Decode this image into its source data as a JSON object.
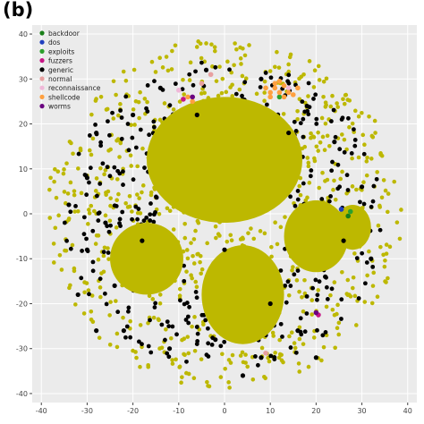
{
  "panel_label": "(b)",
  "chart_data": {
    "type": "scatter",
    "title": "",
    "xlabel": "",
    "ylabel": "",
    "xlim": [
      -42,
      42
    ],
    "ylim": [
      -42,
      42
    ],
    "xticks": [
      -40,
      -30,
      -20,
      -10,
      0,
      10,
      20,
      30,
      40
    ],
    "yticks": [
      -40,
      -30,
      -20,
      -10,
      0,
      10,
      20,
      30,
      40
    ],
    "grid": true,
    "legend_position": "top-left",
    "series": [
      {
        "name": "backdoor",
        "color": "#1a7f1a",
        "points": [
          [
            27,
            -0.5
          ]
        ]
      },
      {
        "name": "dos",
        "color": "#1f3fbf",
        "points": [
          [
            25.5,
            1
          ]
        ]
      },
      {
        "name": "exploits",
        "color": "#2ca02c",
        "points": [
          [
            27.5,
            0.5
          ],
          [
            12,
            26
          ]
        ]
      },
      {
        "name": "fuzzers",
        "color": "#c71585",
        "points": [
          [
            20.5,
            -22.5
          ],
          [
            -9,
            25.5
          ]
        ]
      },
      {
        "name": "generic",
        "color": "#000000",
        "points": [
          [
            -28,
            18
          ],
          [
            -30,
            8
          ],
          [
            -26,
            -2
          ],
          [
            -30,
            -8
          ],
          [
            -24,
            -16
          ],
          [
            -32,
            -18
          ],
          [
            -22,
            -26
          ],
          [
            -12,
            -30
          ],
          [
            -2,
            -28
          ],
          [
            8,
            -32
          ],
          [
            16,
            -26
          ],
          [
            22,
            -14
          ],
          [
            26,
            -6
          ],
          [
            30,
            6
          ],
          [
            24,
            16
          ],
          [
            18,
            24
          ],
          [
            8,
            30
          ],
          [
            -4,
            32
          ],
          [
            -14,
            28
          ],
          [
            -20,
            22
          ],
          [
            -34,
            2
          ],
          [
            -18,
            -6
          ],
          [
            0,
            -8
          ],
          [
            10,
            -20
          ],
          [
            20,
            -32
          ],
          [
            -6,
            22
          ],
          [
            14,
            18
          ],
          [
            32,
            -10
          ],
          [
            -28,
            -26
          ],
          [
            4,
            -36
          ]
        ]
      },
      {
        "name": "normal",
        "color": "#e8a0a0",
        "points": [
          [
            -5,
            29
          ],
          [
            -3,
            31
          ],
          [
            9,
            -31
          ]
        ]
      },
      {
        "name": "reconnaissance",
        "color": "#f0b8d8",
        "points": [
          [
            -10,
            27.5
          ],
          [
            14,
            28
          ]
        ]
      },
      {
        "name": "shellcode",
        "color": "#ffa040",
        "points": [
          [
            10,
            27
          ],
          [
            11,
            28
          ],
          [
            12,
            27
          ],
          [
            13,
            28.5
          ],
          [
            14,
            27
          ],
          [
            11,
            29
          ],
          [
            9,
            28
          ],
          [
            15,
            26.5
          ],
          [
            12,
            29.5
          ],
          [
            10,
            26
          ],
          [
            13,
            26
          ],
          [
            -8,
            26
          ],
          [
            -7,
            25
          ],
          [
            16,
            28
          ]
        ]
      },
      {
        "name": "worms",
        "color": "#6a0080",
        "points": [
          [
            20,
            -22
          ],
          [
            -7,
            26
          ]
        ]
      }
    ],
    "background_clusters": {
      "color": "#bdb800",
      "blobs": [
        {
          "cx": 0,
          "cy": 12,
          "rx": 17,
          "ry": 14
        },
        {
          "cx": -17,
          "cy": -10,
          "rx": 8,
          "ry": 8
        },
        {
          "cx": 4,
          "cy": -18,
          "rx": 9,
          "ry": 11
        },
        {
          "cx": 20,
          "cy": -5,
          "rx": 7,
          "ry": 8
        },
        {
          "cx": 28,
          "cy": -3,
          "rx": 4,
          "ry": 5
        }
      ],
      "ring_radius": 39
    }
  }
}
